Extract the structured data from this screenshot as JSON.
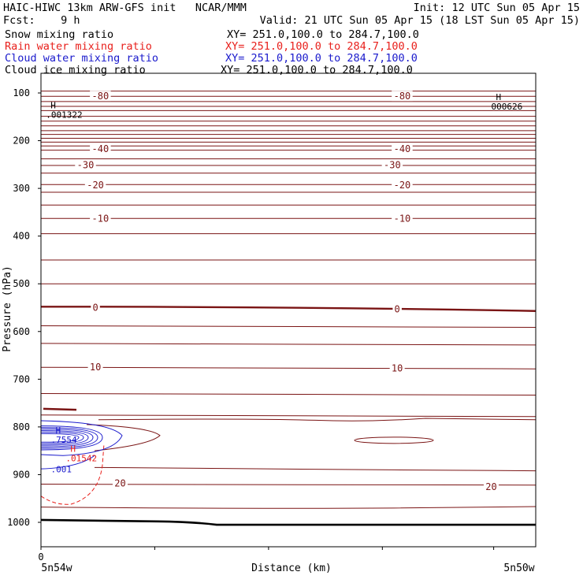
{
  "header": {
    "line1_left": "HAIC-HIWC 13km ARW-GFS init   NCAR/MMM",
    "line1_right": "Init: 12 UTC Sun 05 Apr 15",
    "line2_left": "Fcst:    9 h",
    "line2_right": "Valid: 21 UTC Sun 05 Apr 15 (18 LST Sun 05 Apr 15)",
    "fields": [
      {
        "name": "Snow mixing ratio",
        "xy": "XY= 251.0,100.0 to 284.7,100.0",
        "color": "#000000"
      },
      {
        "name": "Rain water mixing ratio",
        "xy": "XY= 251.0,100.0 to 284.7,100.0",
        "color": "#e8201c"
      },
      {
        "name": "Cloud water mixing ratio",
        "xy": "XY= 251.0,100.0 to 284.7,100.0",
        "color": "#1a1acc"
      },
      {
        "name": "Cloud ice mixing ratio",
        "xy": "XY= 251.0,100.0 to 284.7,100.0",
        "color": "#000000"
      }
    ]
  },
  "chart_data": {
    "type": "contour",
    "ylabel": "Pressure (hPa)",
    "xlabel": "Distance (km)",
    "y_ticks": [
      100,
      200,
      300,
      400,
      500,
      600,
      700,
      800,
      900,
      1000
    ],
    "ylim": [
      1050,
      50
    ],
    "y_scale": "linear",
    "x_tick_label": "0",
    "x_end_labels": [
      "5n54w",
      "5n50w"
    ],
    "colors": {
      "temperature": "#7a1414",
      "rain": "#e8201c",
      "cloud": "#1a1acc",
      "axis": "#000000"
    },
    "temperature_labels": [
      {
        "value": "-80",
        "p": 107,
        "xf": 0.12
      },
      {
        "value": "-80",
        "p": 107,
        "xf": 0.73
      },
      {
        "value": "-40",
        "p": 217,
        "xf": 0.12
      },
      {
        "value": "-40",
        "p": 217,
        "xf": 0.73
      },
      {
        "value": "-30",
        "p": 251,
        "xf": 0.09
      },
      {
        "value": "-30",
        "p": 251,
        "xf": 0.71
      },
      {
        "value": "-20",
        "p": 293,
        "xf": 0.11
      },
      {
        "value": "-20",
        "p": 293,
        "xf": 0.73
      },
      {
        "value": "-10",
        "p": 363,
        "xf": 0.12
      },
      {
        "value": "-10",
        "p": 363,
        "xf": 0.73
      },
      {
        "value": "0",
        "p": 550,
        "xf": 0.11
      },
      {
        "value": "0",
        "p": 553,
        "xf": 0.72
      },
      {
        "value": "10",
        "p": 675,
        "xf": 0.11
      },
      {
        "value": "10",
        "p": 677,
        "xf": 0.72
      },
      {
        "value": "20",
        "p": 918,
        "xf": 0.16
      },
      {
        "value": "20",
        "p": 926,
        "xf": 0.91
      }
    ],
    "maxima": [
      {
        "label": "H",
        "value": ".001322",
        "p": 132,
        "xf": 0.01,
        "color": "#000000"
      },
      {
        "label": "H",
        "value": "000626",
        "p": 115,
        "xf": 0.91,
        "color": "#000000"
      },
      {
        "label": "H",
        "value": ".7554",
        "p": 813,
        "xf": 0.02,
        "color": "#1a1acc"
      },
      {
        "label": "",
        "value": ".001",
        "p": 875,
        "xf": 0.02,
        "color": "#1a1acc"
      },
      {
        "label": "H",
        "value": ".01542",
        "p": 852,
        "xf": 0.05,
        "color": "#e8201c"
      }
    ]
  }
}
